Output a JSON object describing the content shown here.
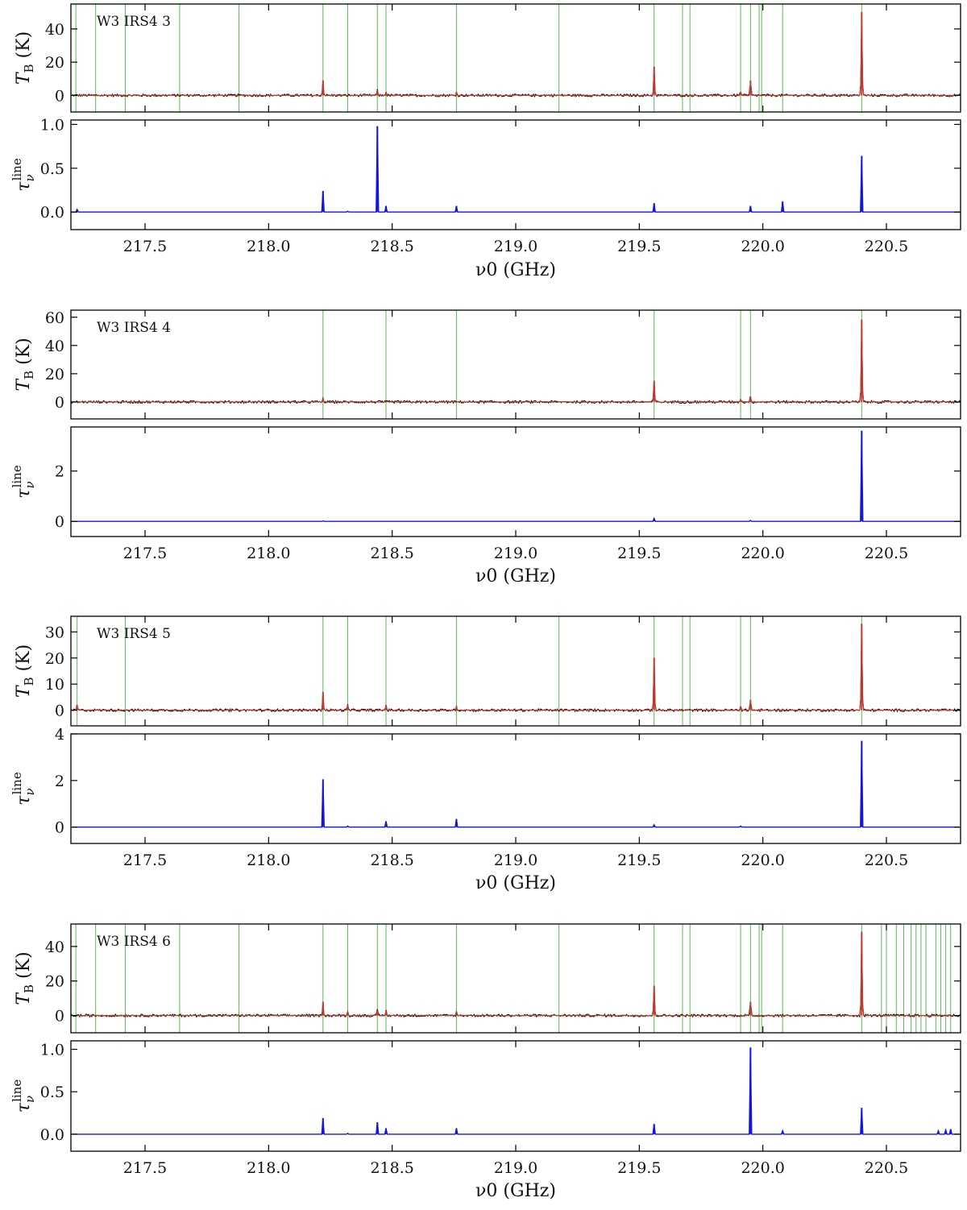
{
  "chart_data": [
    {
      "type": "line",
      "source": "W3 IRS4 3",
      "xlabel": "ν0 (GHz)",
      "xlim": [
        217.2,
        220.8
      ],
      "xticks": [
        217.5,
        218.0,
        218.5,
        219.0,
        219.5,
        220.0,
        220.5
      ],
      "xtick_labels": [
        "217.5",
        "218.0",
        "218.5",
        "219.0",
        "219.5",
        "220.0",
        "220.5"
      ],
      "top": {
        "ylabel_main": "T",
        "ylabel_sub": "B",
        "ylabel_unit": " (K)",
        "ylim": [
          -10,
          55
        ],
        "yticks": [
          0,
          20,
          40
        ],
        "ytick_labels": [
          "0",
          "20",
          "40"
        ],
        "line_markers_ghz": [
          217.22,
          217.3,
          217.42,
          217.64,
          217.88,
          218.22,
          218.32,
          218.44,
          218.475,
          218.76,
          219.175,
          219.56,
          219.675,
          219.705,
          219.91,
          219.95,
          219.985,
          219.995,
          220.08,
          220.4
        ],
        "peaks": [
          {
            "x": 218.22,
            "y": 9
          },
          {
            "x": 218.44,
            "y": 3
          },
          {
            "x": 218.475,
            "y": 2
          },
          {
            "x": 218.76,
            "y": 2
          },
          {
            "x": 219.56,
            "y": 17
          },
          {
            "x": 219.91,
            "y": 2
          },
          {
            "x": 219.95,
            "y": 9
          },
          {
            "x": 220.4,
            "y": 50
          }
        ]
      },
      "bottom": {
        "ylabel_main": "τ",
        "ylabel_sub": "ν",
        "ylabel_sup": "line",
        "ylim": [
          -0.2,
          1.05
        ],
        "yticks": [
          0.0,
          0.5,
          1.0
        ],
        "ytick_labels": [
          "0.0",
          "0.5",
          "1.0"
        ],
        "peaks": [
          {
            "x": 217.225,
            "y": 0.03
          },
          {
            "x": 218.22,
            "y": 0.24
          },
          {
            "x": 218.32,
            "y": 0.01
          },
          {
            "x": 218.44,
            "y": 0.98
          },
          {
            "x": 218.475,
            "y": 0.07
          },
          {
            "x": 218.76,
            "y": 0.07
          },
          {
            "x": 219.56,
            "y": 0.1
          },
          {
            "x": 219.95,
            "y": 0.07
          },
          {
            "x": 220.08,
            "y": 0.12
          },
          {
            "x": 220.4,
            "y": 0.64
          }
        ]
      }
    },
    {
      "type": "line",
      "source": "W3 IRS4 4",
      "xlabel": "ν0 (GHz)",
      "xlim": [
        217.2,
        220.8
      ],
      "xticks": [
        217.5,
        218.0,
        218.5,
        219.0,
        219.5,
        220.0,
        220.5
      ],
      "xtick_labels": [
        "217.5",
        "218.0",
        "218.5",
        "219.0",
        "219.5",
        "220.0",
        "220.5"
      ],
      "top": {
        "ylabel_main": "T",
        "ylabel_sub": "B",
        "ylabel_unit": " (K)",
        "ylim": [
          -12,
          65
        ],
        "yticks": [
          0,
          20,
          40,
          60
        ],
        "ytick_labels": [
          "0",
          "20",
          "40",
          "60"
        ],
        "line_markers_ghz": [
          218.22,
          218.475,
          218.76,
          219.56,
          219.91,
          219.95,
          220.4
        ],
        "peaks": [
          {
            "x": 218.22,
            "y": 2
          },
          {
            "x": 219.56,
            "y": 15
          },
          {
            "x": 219.91,
            "y": 2
          },
          {
            "x": 219.95,
            "y": 4
          },
          {
            "x": 220.4,
            "y": 58
          }
        ]
      },
      "bottom": {
        "ylabel_main": "τ",
        "ylabel_sub": "ν",
        "ylabel_sup": "line",
        "ylim": [
          -0.6,
          3.75
        ],
        "yticks": [
          0,
          2
        ],
        "ytick_labels": [
          "0",
          "2"
        ],
        "peaks": [
          {
            "x": 218.22,
            "y": 0.02
          },
          {
            "x": 219.56,
            "y": 0.12
          },
          {
            "x": 219.95,
            "y": 0.04
          },
          {
            "x": 220.4,
            "y": 3.6
          }
        ]
      }
    },
    {
      "type": "line",
      "source": "W3 IRS4 5",
      "xlabel": "ν0 (GHz)",
      "xlim": [
        217.2,
        220.8
      ],
      "xticks": [
        217.5,
        218.0,
        218.5,
        219.0,
        219.5,
        220.0,
        220.5
      ],
      "xtick_labels": [
        "217.5",
        "218.0",
        "218.5",
        "219.0",
        "219.5",
        "220.0",
        "220.5"
      ],
      "top": {
        "ylabel_main": "T",
        "ylabel_sub": "B",
        "ylabel_unit": " (K)",
        "ylim": [
          -6,
          36
        ],
        "yticks": [
          0,
          10,
          20,
          30
        ],
        "ytick_labels": [
          "0",
          "10",
          "20",
          "30"
        ],
        "line_markers_ghz": [
          217.225,
          217.42,
          218.22,
          218.32,
          218.475,
          218.76,
          219.175,
          219.56,
          219.675,
          219.705,
          219.91,
          219.95,
          220.4
        ],
        "peaks": [
          {
            "x": 217.225,
            "y": 2
          },
          {
            "x": 218.22,
            "y": 7
          },
          {
            "x": 218.32,
            "y": 2
          },
          {
            "x": 218.475,
            "y": 2
          },
          {
            "x": 218.76,
            "y": 1.5
          },
          {
            "x": 219.56,
            "y": 20
          },
          {
            "x": 219.91,
            "y": 1.5
          },
          {
            "x": 219.95,
            "y": 4
          },
          {
            "x": 220.4,
            "y": 33
          }
        ]
      },
      "bottom": {
        "ylabel_main": "τ",
        "ylabel_sub": "ν",
        "ylabel_sup": "line",
        "ylim": [
          -0.7,
          4.0
        ],
        "yticks": [
          0,
          2,
          4
        ],
        "ytick_labels": [
          "0",
          "2",
          "4"
        ],
        "peaks": [
          {
            "x": 218.22,
            "y": 2.05
          },
          {
            "x": 218.32,
            "y": 0.05
          },
          {
            "x": 218.475,
            "y": 0.25
          },
          {
            "x": 218.76,
            "y": 0.35
          },
          {
            "x": 219.56,
            "y": 0.1
          },
          {
            "x": 219.91,
            "y": 0.05
          },
          {
            "x": 220.4,
            "y": 3.7
          }
        ]
      }
    },
    {
      "type": "line",
      "source": "W3 IRS4 6",
      "xlabel": "ν0 (GHz)",
      "xlim": [
        217.2,
        220.8
      ],
      "xticks": [
        217.5,
        218.0,
        218.5,
        219.0,
        219.5,
        220.0,
        220.5
      ],
      "xtick_labels": [
        "217.5",
        "218.0",
        "218.5",
        "219.0",
        "219.5",
        "220.0",
        "220.5"
      ],
      "top": {
        "ylabel_main": "T",
        "ylabel_sub": "B",
        "ylabel_unit": " (K)",
        "ylim": [
          -10,
          53
        ],
        "yticks": [
          0,
          20,
          40
        ],
        "ytick_labels": [
          "0",
          "20",
          "40"
        ],
        "line_markers_ghz": [
          217.22,
          217.3,
          217.42,
          217.64,
          217.88,
          218.22,
          218.32,
          218.44,
          218.475,
          218.76,
          219.175,
          219.56,
          219.675,
          219.705,
          219.91,
          219.95,
          219.985,
          219.995,
          220.08,
          220.4,
          220.48,
          220.5,
          220.54,
          220.57,
          220.6,
          220.62,
          220.64,
          220.66,
          220.7,
          220.72,
          220.74,
          220.76
        ],
        "peaks": [
          {
            "x": 218.22,
            "y": 8
          },
          {
            "x": 218.32,
            "y": 2
          },
          {
            "x": 218.44,
            "y": 3
          },
          {
            "x": 218.475,
            "y": 3
          },
          {
            "x": 218.76,
            "y": 2
          },
          {
            "x": 219.56,
            "y": 17
          },
          {
            "x": 219.95,
            "y": 8
          },
          {
            "x": 220.4,
            "y": 48
          }
        ]
      },
      "bottom": {
        "ylabel_main": "τ",
        "ylabel_sub": "ν",
        "ylabel_sup": "line",
        "ylim": [
          -0.2,
          1.1
        ],
        "yticks": [
          0.0,
          0.5,
          1.0
        ],
        "ytick_labels": [
          "0.0",
          "0.5",
          "1.0"
        ],
        "peaks": [
          {
            "x": 218.22,
            "y": 0.19
          },
          {
            "x": 218.32,
            "y": 0.01
          },
          {
            "x": 218.44,
            "y": 0.14
          },
          {
            "x": 218.475,
            "y": 0.07
          },
          {
            "x": 218.76,
            "y": 0.07
          },
          {
            "x": 219.56,
            "y": 0.12
          },
          {
            "x": 219.95,
            "y": 1.02
          },
          {
            "x": 220.08,
            "y": 0.04
          },
          {
            "x": 220.4,
            "y": 0.31
          },
          {
            "x": 220.71,
            "y": 0.04
          },
          {
            "x": 220.74,
            "y": 0.05
          },
          {
            "x": 220.76,
            "y": 0.06
          }
        ]
      }
    }
  ],
  "colors": {
    "observed": "#000000",
    "model": "#c0392b",
    "tau": "#1515e0",
    "markers": "#5cb85c",
    "frame": "#000000"
  }
}
